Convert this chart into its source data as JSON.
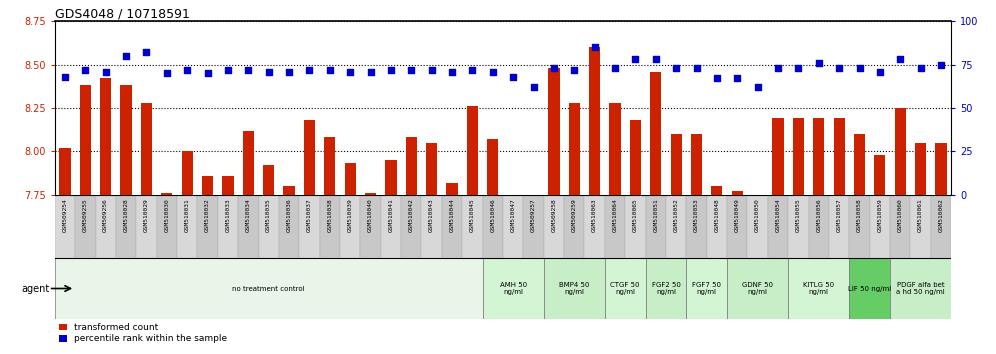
{
  "title": "GDS4048 / 10718591",
  "samples": [
    "GSM509254",
    "GSM509255",
    "GSM509256",
    "GSM510028",
    "GSM510029",
    "GSM510030",
    "GSM510031",
    "GSM510032",
    "GSM510033",
    "GSM510034",
    "GSM510035",
    "GSM510036",
    "GSM510037",
    "GSM510038",
    "GSM510039",
    "GSM510040",
    "GSM510041",
    "GSM510042",
    "GSM510043",
    "GSM510044",
    "GSM510045",
    "GSM510046",
    "GSM510047",
    "GSM509257",
    "GSM509258",
    "GSM509259",
    "GSM510063",
    "GSM510064",
    "GSM510065",
    "GSM510051",
    "GSM510052",
    "GSM510053",
    "GSM510048",
    "GSM510049",
    "GSM510050",
    "GSM510054",
    "GSM510055",
    "GSM510056",
    "GSM510057",
    "GSM510058",
    "GSM510059",
    "GSM510060",
    "GSM510061",
    "GSM510062"
  ],
  "bar_values": [
    8.02,
    8.38,
    8.42,
    8.38,
    8.28,
    7.76,
    8.0,
    7.86,
    7.86,
    8.12,
    7.92,
    7.8,
    8.18,
    8.08,
    7.93,
    7.76,
    7.95,
    8.08,
    8.05,
    7.82,
    8.26,
    8.07,
    7.75,
    7.75,
    8.48,
    8.28,
    8.6,
    8.28,
    8.18,
    8.46,
    8.1,
    8.1,
    7.8,
    7.77,
    7.72,
    8.19,
    8.19,
    8.19,
    8.19,
    8.1,
    7.98,
    8.25,
    8.05,
    8.05
  ],
  "percentile_values": [
    68,
    72,
    71,
    80,
    82,
    70,
    72,
    70,
    72,
    72,
    71,
    71,
    72,
    72,
    71,
    71,
    72,
    72,
    72,
    71,
    72,
    71,
    68,
    62,
    73,
    72,
    85,
    73,
    78,
    78,
    73,
    73,
    67,
    67,
    62,
    73,
    73,
    76,
    73,
    73,
    71,
    78,
    73,
    75
  ],
  "ylim_left": [
    7.75,
    8.75
  ],
  "ylim_right": [
    0,
    100
  ],
  "yticks_left": [
    7.75,
    8.0,
    8.25,
    8.5,
    8.75
  ],
  "yticks_right": [
    0,
    25,
    50,
    75,
    100
  ],
  "bar_color": "#cc2200",
  "dot_color": "#0000cc",
  "bar_baseline": 7.75,
  "agent_groups": [
    {
      "label": "no treatment control",
      "start": 0,
      "end": 21,
      "color": "#e8f5e8"
    },
    {
      "label": "AMH 50\nng/ml",
      "start": 21,
      "end": 24,
      "color": "#d4f5d4"
    },
    {
      "label": "BMP4 50\nng/ml",
      "start": 24,
      "end": 27,
      "color": "#c8eec8"
    },
    {
      "label": "CTGF 50\nng/ml",
      "start": 27,
      "end": 29,
      "color": "#d4f5d4"
    },
    {
      "label": "FGF2 50\nng/ml",
      "start": 29,
      "end": 31,
      "color": "#c8eec8"
    },
    {
      "label": "FGF7 50\nng/ml",
      "start": 31,
      "end": 33,
      "color": "#d4f5d4"
    },
    {
      "label": "GDNF 50\nng/ml",
      "start": 33,
      "end": 36,
      "color": "#c8eec8"
    },
    {
      "label": "KITLG 50\nng/ml",
      "start": 36,
      "end": 39,
      "color": "#d4f5d4"
    },
    {
      "label": "LIF 50 ng/ml",
      "start": 39,
      "end": 41,
      "color": "#66cc66"
    },
    {
      "label": "PDGF alfa bet\na hd 50 ng/ml",
      "start": 41,
      "end": 44,
      "color": "#c8eec8"
    }
  ],
  "bar_color_hex": "#cc2200",
  "dot_color_hex": "#0000cc",
  "left_tick_color": "#cc2200",
  "right_tick_color": "#0000cc"
}
